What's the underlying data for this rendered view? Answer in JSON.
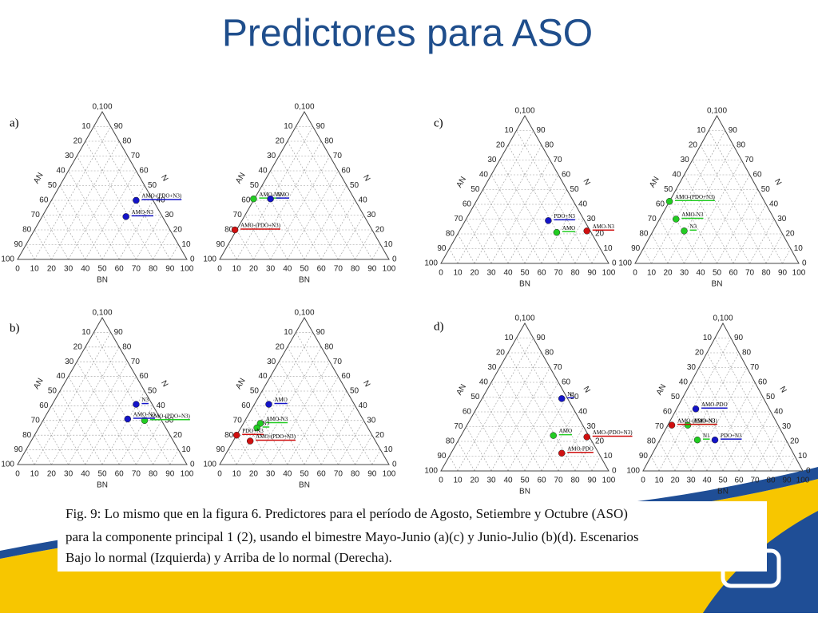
{
  "title": "Predictores para ASO",
  "panel_letters": [
    "a)",
    "b)",
    "c)",
    "d)"
  ],
  "ternary": {
    "apex_label": "0,100",
    "ticks": [
      0,
      10,
      20,
      30,
      40,
      50,
      60,
      70,
      80,
      90,
      100
    ],
    "axis_names": {
      "left": "AN",
      "right": "N",
      "bottom": "BN"
    }
  },
  "plots": [
    {
      "points": [
        {
          "label": "AMO-(PDO+N3)",
          "color": "#1414c8",
          "bn": 70,
          "an": 60
        },
        {
          "label": "AMO-N3",
          "color": "#1414c8",
          "bn": 64,
          "an": 71
        }
      ]
    },
    {
      "points": [
        {
          "label": "AMO-N3",
          "color": "#22cc22",
          "bn": 20,
          "an": 59
        },
        {
          "label": "AMO",
          "color": "#1414c8",
          "bn": 30,
          "an": 59
        },
        {
          "label": "AMO-(PDO+N3)",
          "color": "#d01010",
          "bn": 9,
          "an": 80
        }
      ]
    },
    {
      "points": [
        {
          "label": "PDO+N3",
          "color": "#1414c8",
          "bn": 64,
          "an": 71
        },
        {
          "label": "AMO",
          "color": "#22cc22",
          "bn": 69,
          "an": 79
        },
        {
          "label": "AMO-N3",
          "color": "#d01010",
          "bn": 87,
          "an": 78
        }
      ]
    },
    {
      "points": [
        {
          "label": "AMO-(PDO+N3)",
          "color": "#22cc22",
          "bn": 21,
          "an": 58
        },
        {
          "label": "AMO-N3",
          "color": "#22cc22",
          "bn": 25,
          "an": 70
        },
        {
          "label": "N3",
          "color": "#22cc22",
          "bn": 30,
          "an": 78
        }
      ]
    },
    {
      "points": [
        {
          "label": "N3",
          "color": "#1414c8",
          "bn": 70,
          "an": 59
        },
        {
          "label": "AMO-(PDO+N3)",
          "color": "#22cc22",
          "bn": 75,
          "an": 70
        },
        {
          "label": "AMO-N3",
          "color": "#1414c8",
          "bn": 65,
          "an": 69
        }
      ]
    },
    {
      "points": [
        {
          "label": "AMO",
          "color": "#1414c8",
          "bn": 29,
          "an": 59
        },
        {
          "label": "AMO-N3",
          "color": "#22cc22",
          "bn": 24,
          "an": 72
        },
        {
          "label": "N3",
          "color": "#22cc22",
          "bn": 22,
          "an": 75
        },
        {
          "label": "PDO+N3",
          "color": "#d01010",
          "bn": 10,
          "an": 80
        },
        {
          "label": "AMO-(PDO+N3)",
          "color": "#d01010",
          "bn": 18,
          "an": 84
        }
      ]
    },
    {
      "points": [
        {
          "label": "N3",
          "color": "#1414c8",
          "bn": 72,
          "an": 51
        },
        {
          "label": "AMO",
          "color": "#22cc22",
          "bn": 67,
          "an": 76
        },
        {
          "label": "AMO-(PDO+N3)",
          "color": "#d01010",
          "bn": 87,
          "an": 77
        },
        {
          "label": "AMO-PDO",
          "color": "#d01010",
          "bn": 72,
          "an": 88
        }
      ]
    },
    {
      "points": [
        {
          "label": "AMO-PDO",
          "color": "#1414c8",
          "bn": 33,
          "an": 58
        },
        {
          "label": "AMO-N3",
          "color": "#22cc22",
          "bn": 28,
          "an": 69
        },
        {
          "label": "AMO-(PDO+N3)",
          "color": "#d01010",
          "bn": 18,
          "an": 69
        },
        {
          "label": "N1",
          "color": "#22cc22",
          "bn": 34,
          "an": 79
        },
        {
          "label": "PDO+N3",
          "color": "#1414c8",
          "bn": 45,
          "an": 79
        }
      ]
    }
  ],
  "caption": [
    "Fig. 9: Lo mismo que en la figura 6. Predictores para el período de Agosto, Setiembre y Octubre (ASO)",
    "para la componente principal 1 (2), usando el bimestre Mayo-Junio (a)(c) y Junio-Julio (b)(d). Escenarios",
    "Bajo lo normal (Izquierda) y Arriba de lo normal (Derecha)."
  ]
}
